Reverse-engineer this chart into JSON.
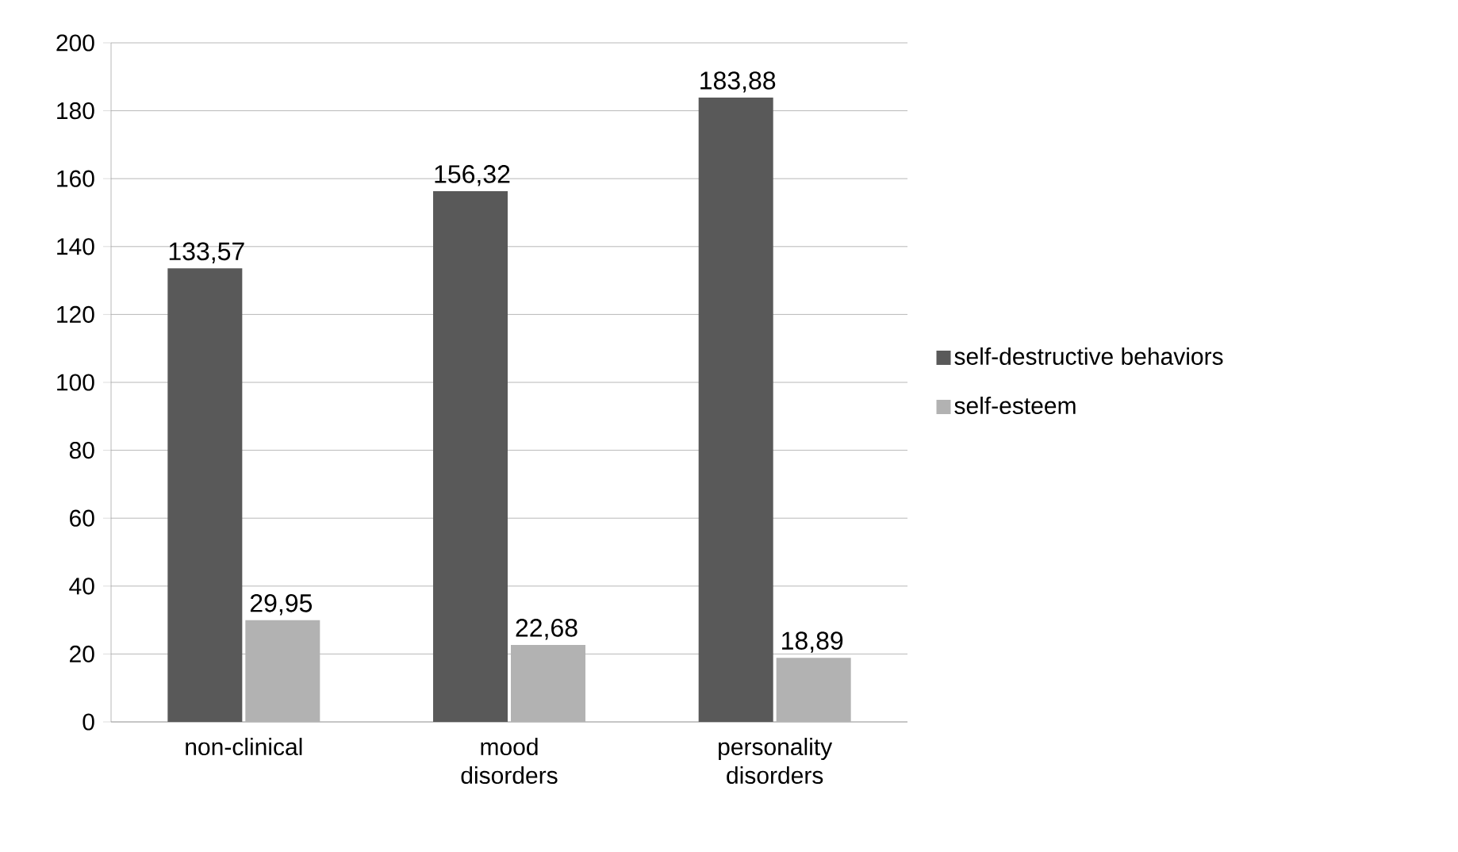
{
  "chart_data": {
    "type": "bar",
    "categories": [
      "non-clinical",
      "mood disorders",
      "personality disorders"
    ],
    "series": [
      {
        "name": "self-destructive behaviors",
        "color": "#595959",
        "values": [
          133.57,
          156.32,
          183.88
        ],
        "value_labels": [
          "133,57",
          "156,32",
          "183,88"
        ]
      },
      {
        "name": "self-esteem",
        "color": "#b2b2b2",
        "values": [
          29.95,
          22.68,
          18.89
        ],
        "value_labels": [
          "29,95",
          "22,68",
          "18,89"
        ]
      }
    ],
    "ylim": [
      0,
      200
    ],
    "yticks": [
      0,
      20,
      40,
      60,
      80,
      100,
      120,
      140,
      160,
      180,
      200
    ],
    "grid": "y",
    "legend": "right"
  }
}
